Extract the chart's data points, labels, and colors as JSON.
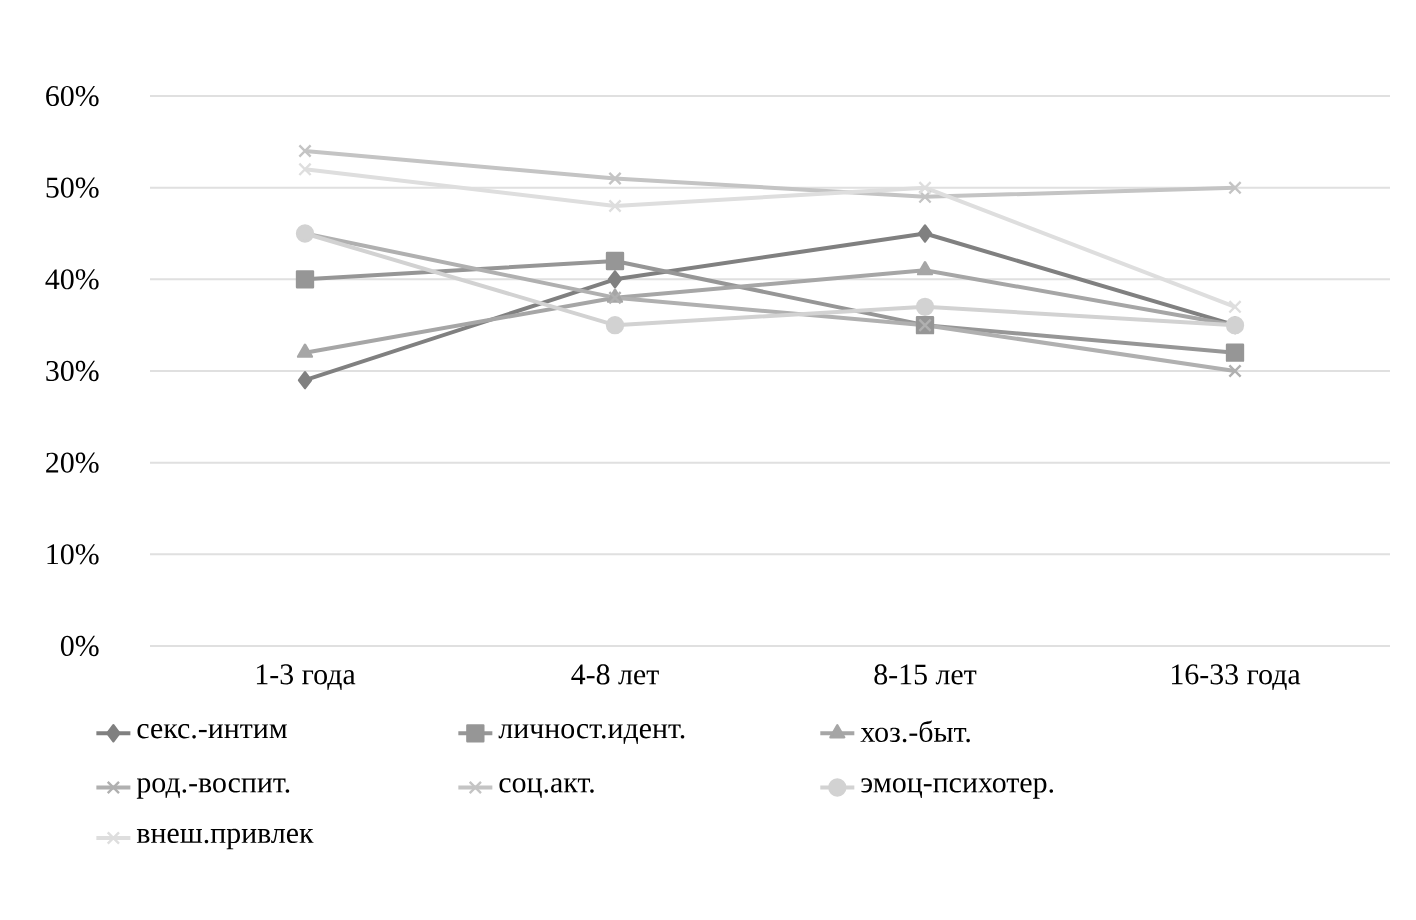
{
  "chart_data": {
    "type": "line",
    "categories": [
      "1-3 года",
      "4-8 лет",
      "8-15 лет",
      "16-33 года"
    ],
    "ylim": [
      0,
      60
    ],
    "yticks": [
      {
        "value": 0,
        "label": "0%"
      },
      {
        "value": 10,
        "label": "10%"
      },
      {
        "value": 20,
        "label": "20%"
      },
      {
        "value": 30,
        "label": "30%"
      },
      {
        "value": 40,
        "label": "40%"
      },
      {
        "value": 50,
        "label": "50%"
      },
      {
        "value": 60,
        "label": "60%"
      }
    ],
    "grid": "y",
    "legend": "bottom",
    "line_style": "solid",
    "series": [
      {
        "name": "секс.-интим",
        "color": "#808080",
        "marker": "diamond",
        "values": [
          29,
          40,
          45,
          35
        ]
      },
      {
        "name": "личност.идент.",
        "color": "#969696",
        "marker": "square",
        "values": [
          40,
          42,
          35,
          32
        ]
      },
      {
        "name": "хоз.-быт.",
        "color": "#a6a6a6",
        "marker": "triangle",
        "values": [
          32,
          38,
          41,
          35
        ]
      },
      {
        "name": "род.-воспит.",
        "color": "#b0b0b0",
        "marker": "cross",
        "values": [
          45,
          38,
          35,
          30
        ]
      },
      {
        "name": "соц.акт.",
        "color": "#c4c4c4",
        "marker": "cross",
        "values": [
          54,
          51,
          49,
          50
        ]
      },
      {
        "name": "эмоц-психотер.",
        "color": "#d2d2d2",
        "marker": "circle",
        "values": [
          45,
          35,
          37,
          35
        ]
      },
      {
        "name": "внеш.привлек",
        "color": "#dedede",
        "marker": "cross",
        "values": [
          52,
          48,
          50,
          37
        ]
      }
    ]
  }
}
